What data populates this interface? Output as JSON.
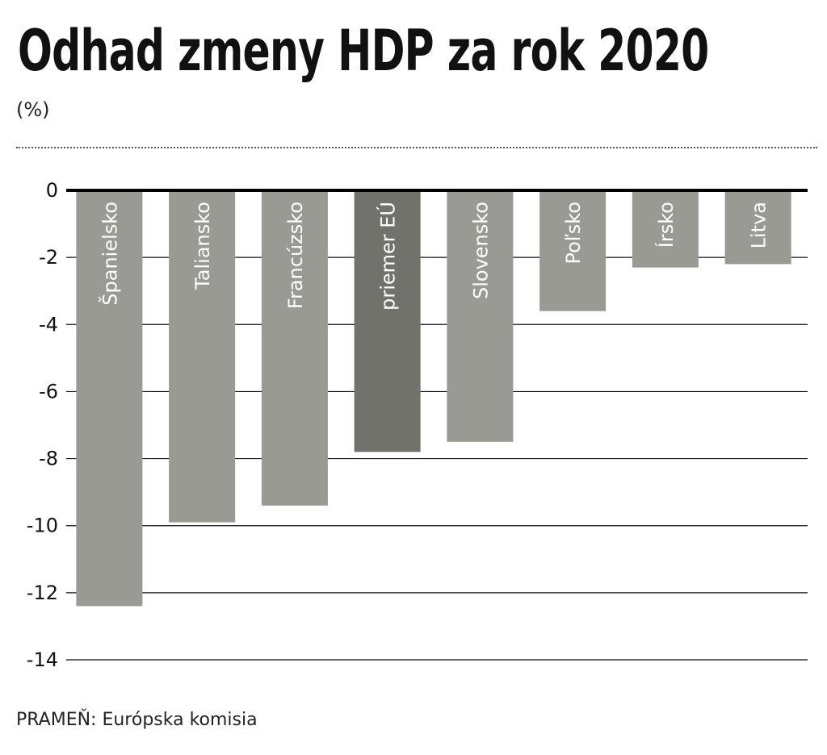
{
  "header": {
    "title": "Odhad zmeny HDP za rok 2020",
    "subtitle": "(%)"
  },
  "footer": {
    "source": "PRAMEŇ: Európska komisia"
  },
  "colors": {
    "bar": "#9a9a94",
    "bar_highlight": "#72726c",
    "gridline": "#111111",
    "zero_line": "#000000"
  },
  "chart_data": {
    "type": "bar",
    "orientation": "vertical",
    "title": "Odhad zmeny HDP za rok 2020",
    "subtitle": "(%)",
    "xlabel": "",
    "ylabel": "",
    "categories": [
      "Španielsko",
      "Taliansko",
      "Francúzsko",
      "priemer EÚ",
      "Slovensko",
      "Poľsko",
      "Írsko",
      "Litva"
    ],
    "values": [
      -12.4,
      -9.9,
      -9.4,
      -7.8,
      -7.5,
      -3.6,
      -2.3,
      -2.2
    ],
    "highlight_index": 3,
    "ylim": [
      -14,
      0
    ],
    "yticks": [
      0,
      -2,
      -4,
      -6,
      -8,
      -10,
      -12,
      -14
    ],
    "ytick_labels": [
      "0",
      "-2",
      "-4",
      "-6",
      "-8",
      "-10",
      "-12",
      "-14"
    ],
    "grid": true,
    "legend": "none",
    "category_labels_position": "inside-bar-rotated"
  }
}
